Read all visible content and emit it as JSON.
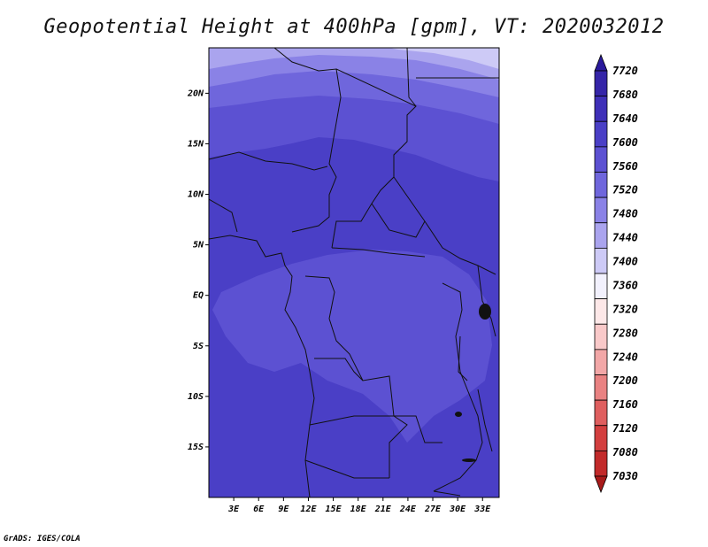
{
  "title": "Geopotential Height at 400hPa [gpm], VT: 2020032012",
  "footer": "GrADS: IGES/COLA",
  "map": {
    "x_ticks": [
      "3E",
      "6E",
      "9E",
      "12E",
      "15E",
      "18E",
      "21E",
      "24E",
      "27E",
      "30E",
      "33E"
    ],
    "y_ticks": [
      "20N",
      "15N",
      "10N",
      "5N",
      "EQ",
      "5S",
      "10S",
      "15S"
    ],
    "lon_range": [
      0,
      35
    ],
    "lat_range": [
      -20,
      24.5
    ]
  },
  "colorbar": {
    "levels": [
      "7720",
      "7680",
      "7640",
      "7600",
      "7560",
      "7520",
      "7480",
      "7440",
      "7400",
      "7360",
      "7320",
      "7280",
      "7240",
      "7200",
      "7160",
      "7120",
      "7080",
      "7030"
    ],
    "colors": [
      "#2a1a9c",
      "#3525a8",
      "#3f30b8",
      "#4a3fc6",
      "#5c51d2",
      "#6f66dc",
      "#8a82e6",
      "#aaa4ee",
      "#cdcaf6",
      "#f2f1fd",
      "#fde8e8",
      "#f9c9c9",
      "#f2a7a7",
      "#e98282",
      "#df5f5f",
      "#d33f3f",
      "#c22a2a",
      "#a81a1a"
    ]
  },
  "chart_data": {
    "type": "heatmap",
    "title": "Geopotential Height at 400hPa [gpm], VT: 2020032012",
    "variable": "Geopotential Height",
    "level": "400hPa",
    "units": "gpm",
    "valid_time": "2020032012",
    "x_range": [
      0,
      35
    ],
    "y_range": [
      -20,
      24.5
    ],
    "bands_by_lat": [
      {
        "lat": [
          22,
          24.5
        ],
        "value": 7480
      },
      {
        "lat": [
          20,
          22
        ],
        "value": 7520
      },
      {
        "lat": [
          17,
          20
        ],
        "value": 7560
      },
      {
        "lat": [
          13,
          17
        ],
        "value": 7600
      },
      {
        "lat": [
          -20,
          13
        ],
        "value": 7640
      }
    ],
    "central_patch_value": 7600
  }
}
